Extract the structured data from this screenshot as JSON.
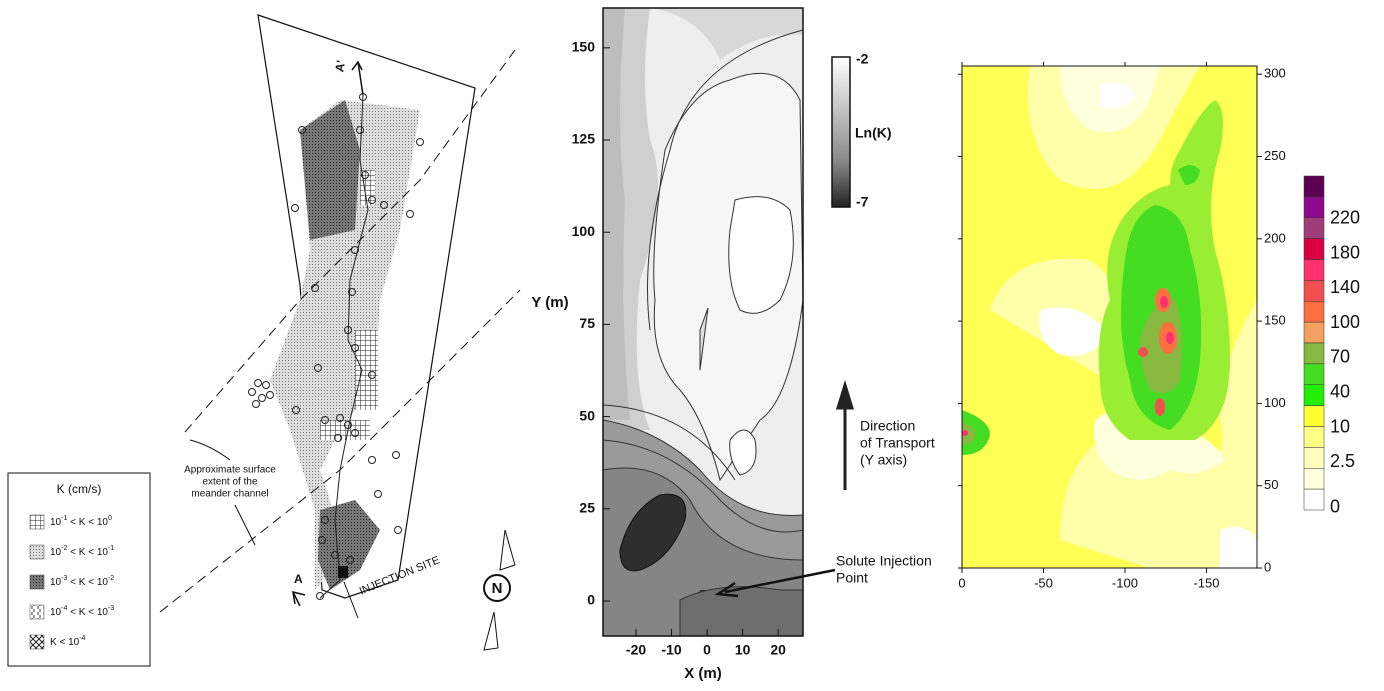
{
  "site_map": {
    "legend": {
      "title": "K (cm/s)",
      "items": [
        [
          "10",
          "-1",
          " < K < 10",
          "0"
        ],
        [
          "10",
          "-2",
          " < K < 10",
          "-1"
        ],
        [
          "10",
          "-3",
          " < K < 10",
          "-2"
        ],
        [
          "10",
          "-4",
          " < K < 10",
          "-3"
        ],
        [
          "K < 10",
          "-4"
        ]
      ]
    },
    "channel_note": [
      "Approximate surface",
      "extent of the",
      "meander channel"
    ],
    "injection_site": "INJECTION SITE",
    "section_start": "A",
    "section_end": "A'",
    "north": "N"
  },
  "ln_k_plot": {
    "y_label": "Y (m)",
    "x_label": "X (m)",
    "xlim": [
      -29.3,
      27
    ],
    "ylim": [
      -9.5,
      160.8
    ],
    "xticks": [
      -20,
      -10,
      0,
      10,
      20
    ],
    "yticks": [
      0,
      25,
      50,
      75,
      100,
      125,
      150
    ],
    "colorbar": {
      "max": "-2",
      "label": "Ln(K)",
      "min": "-7"
    },
    "transport_note": [
      "Direction",
      "of Transport",
      "(Y axis)"
    ],
    "injection_note": [
      "Solute Injection",
      "Point"
    ]
  },
  "concentration_plot": {
    "xlim": [
      0,
      -181
    ],
    "ylim": [
      0,
      305
    ],
    "xticks": [
      0,
      -50,
      -100,
      -150
    ],
    "yticks": [
      0,
      50,
      100,
      150,
      200,
      250,
      300
    ],
    "colorbar": {
      "colors": [
        "#5c0050",
        "#8b0a8b",
        "#a03c78",
        "#d80040",
        "#ff3070",
        "#f05050",
        "#ff7040",
        "#f4a060",
        "#88b840",
        "#44dd22",
        "#22ee00",
        "#ffff33",
        "#ffff88",
        "#ffffbb",
        "#ffffdd",
        "#ffffff"
      ],
      "labels": [
        220,
        180,
        140,
        100,
        70,
        40,
        10,
        2.5,
        0
      ]
    }
  }
}
